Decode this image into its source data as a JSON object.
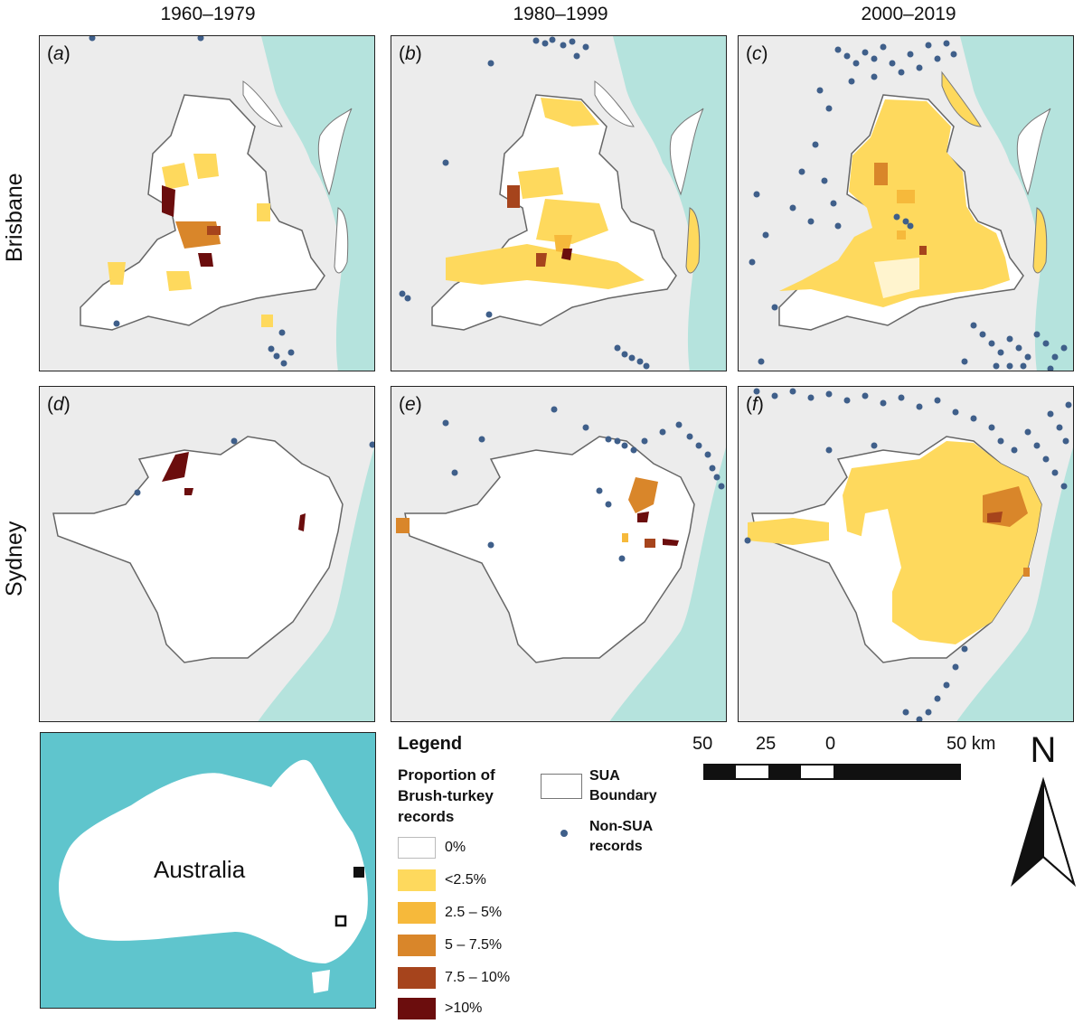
{
  "columns": [
    "1960–1979",
    "1980–1999",
    "2000–2019"
  ],
  "rows": [
    "Brisbane",
    "Sydney"
  ],
  "panels": [
    {
      "label": "a",
      "city": "Brisbane",
      "period": "1960–1979"
    },
    {
      "label": "b",
      "city": "Brisbane",
      "period": "1980–1999"
    },
    {
      "label": "c",
      "city": "Brisbane",
      "period": "2000–2019"
    },
    {
      "label": "d",
      "city": "Sydney",
      "period": "1960–1979"
    },
    {
      "label": "e",
      "city": "Sydney",
      "period": "1980–1999"
    },
    {
      "label": "f",
      "city": "Sydney",
      "period": "2000–2019"
    }
  ],
  "inset": {
    "label": "Australia"
  },
  "legend": {
    "title": "Legend",
    "subtitle": "Proportion of Brush-turkey records",
    "classes": [
      {
        "label": "0%",
        "color": "#ffffff"
      },
      {
        "label": "<2.5%",
        "color": "#fed95d"
      },
      {
        "label": "2.5 – 5%",
        "color": "#f6b93b"
      },
      {
        "label": "5 – 7.5%",
        "color": "#d9862a"
      },
      {
        "label": "7.5 – 10%",
        "color": "#a6441c"
      },
      {
        "label": ">10%",
        "color": "#6b0d0d"
      }
    ],
    "boundary_label": "SUA Boundary",
    "points_label": "Non-SUA records",
    "point_color": "#3f5f8a"
  },
  "scalebar": {
    "labels": [
      "50",
      "25",
      "0",
      "50 km"
    ]
  },
  "north_label": "N",
  "colors": {
    "sea": "#b5e3dd",
    "land": "#ececec",
    "inset_sea": "#5fc5cd"
  }
}
